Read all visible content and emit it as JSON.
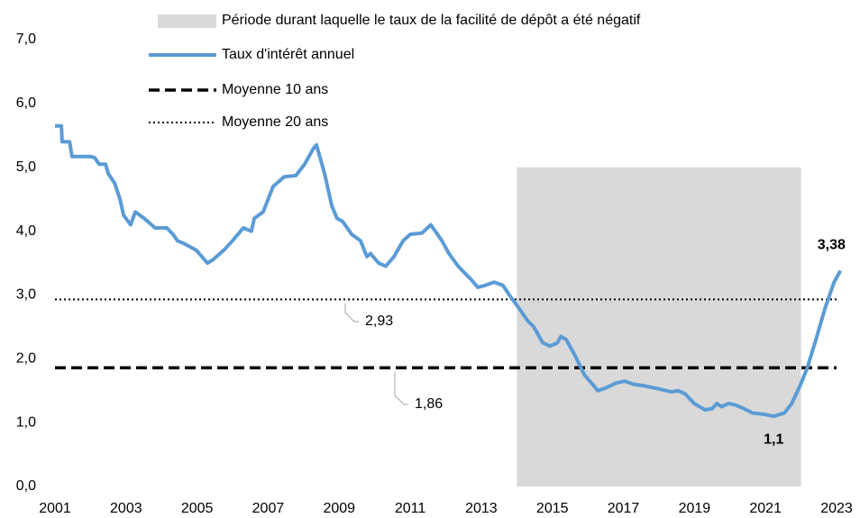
{
  "chart_data": {
    "type": "line",
    "xlim": [
      2001,
      2023
    ],
    "xticks": [
      2001,
      2003,
      2005,
      2007,
      2009,
      2011,
      2013,
      2015,
      2017,
      2019,
      2021,
      2023
    ],
    "ylim": [
      0,
      7
    ],
    "yticks": [
      {
        "value": 0,
        "label": "0,0"
      },
      {
        "value": 1,
        "label": "1,0"
      },
      {
        "value": 2,
        "label": "2,0"
      },
      {
        "value": 3,
        "label": "3,0"
      },
      {
        "value": 4,
        "label": "4,0"
      },
      {
        "value": 5,
        "label": "5,0"
      },
      {
        "value": 6,
        "label": "6,0"
      },
      {
        "value": 7,
        "label": "7,0"
      }
    ],
    "shaded": {
      "name": "Période durant laquelle le taux de la facilité de dépôt a été négatif",
      "x": [
        2014,
        2022
      ],
      "y": [
        0,
        5
      ],
      "color": "#d9d9d9"
    },
    "series": [
      {
        "name": "Taux d'intérêt annuel",
        "color": "#5b9bd5",
        "x": [
          2001.0,
          2001.18,
          2001.2,
          2001.41,
          2001.48,
          2001.99,
          2002.12,
          2002.24,
          2002.42,
          2002.5,
          2002.68,
          2002.83,
          2002.93,
          2003.13,
          2003.26,
          2003.51,
          2003.82,
          2004.15,
          2004.32,
          2004.45,
          2004.65,
          2004.98,
          2005.29,
          2005.44,
          2005.75,
          2006.0,
          2006.3,
          2006.53,
          2006.61,
          2006.86,
          2007.14,
          2007.45,
          2007.78,
          2008.03,
          2008.28,
          2008.36,
          2008.59,
          2008.79,
          2008.94,
          2009.1,
          2009.35,
          2009.6,
          2009.78,
          2009.88,
          2010.11,
          2010.31,
          2010.54,
          2010.8,
          2011.0,
          2011.33,
          2011.58,
          2011.89,
          2012.09,
          2012.35,
          2012.52,
          2012.7,
          2012.9,
          2013.11,
          2013.36,
          2013.61,
          2013.79,
          2014.05,
          2014.3,
          2014.48,
          2014.73,
          2014.93,
          2015.14,
          2015.24,
          2015.39,
          2015.64,
          2015.9,
          2016.13,
          2016.28,
          2016.53,
          2016.79,
          2017.04,
          2017.29,
          2017.55,
          2017.98,
          2018.36,
          2018.54,
          2018.74,
          2018.99,
          2019.3,
          2019.5,
          2019.63,
          2019.76,
          2019.96,
          2020.14,
          2020.39,
          2020.64,
          2020.97,
          2021.23,
          2021.53,
          2021.74,
          2021.99,
          2022.17,
          2022.42,
          2022.68,
          2022.93,
          2023.11
        ],
        "values": [
          5.65,
          5.65,
          5.4,
          5.4,
          5.17,
          5.17,
          5.15,
          5.05,
          5.05,
          4.9,
          4.75,
          4.5,
          4.25,
          4.1,
          4.3,
          4.2,
          4.05,
          4.05,
          3.95,
          3.85,
          3.8,
          3.7,
          3.5,
          3.55,
          3.7,
          3.85,
          4.05,
          4.0,
          4.2,
          4.3,
          4.7,
          4.85,
          4.87,
          5.05,
          5.3,
          5.35,
          4.9,
          4.4,
          4.2,
          4.15,
          3.95,
          3.85,
          3.6,
          3.65,
          3.5,
          3.45,
          3.6,
          3.85,
          3.95,
          3.97,
          4.1,
          3.85,
          3.65,
          3.45,
          3.35,
          3.25,
          3.12,
          3.15,
          3.2,
          3.15,
          3.0,
          2.8,
          2.6,
          2.5,
          2.25,
          2.2,
          2.25,
          2.35,
          2.3,
          2.05,
          1.75,
          1.6,
          1.5,
          1.55,
          1.62,
          1.65,
          1.6,
          1.58,
          1.53,
          1.48,
          1.5,
          1.45,
          1.3,
          1.2,
          1.22,
          1.3,
          1.25,
          1.3,
          1.28,
          1.22,
          1.15,
          1.13,
          1.1,
          1.15,
          1.3,
          1.6,
          1.85,
          2.3,
          2.8,
          3.2,
          3.38
        ]
      }
    ],
    "hlines": [
      {
        "name": "Moyenne 10 ans",
        "value": 1.86,
        "label": "1,86",
        "style": "dashed",
        "color": "#000000"
      },
      {
        "name": "Moyenne 20 ans",
        "value": 2.93,
        "label": "2,93",
        "style": "dotted",
        "color": "#000000"
      }
    ],
    "annotations": [
      {
        "label": "3,38",
        "x": 2023.11,
        "y": 3.38
      },
      {
        "label": "1,1",
        "x": 2021.23,
        "y": 1.1
      }
    ]
  }
}
